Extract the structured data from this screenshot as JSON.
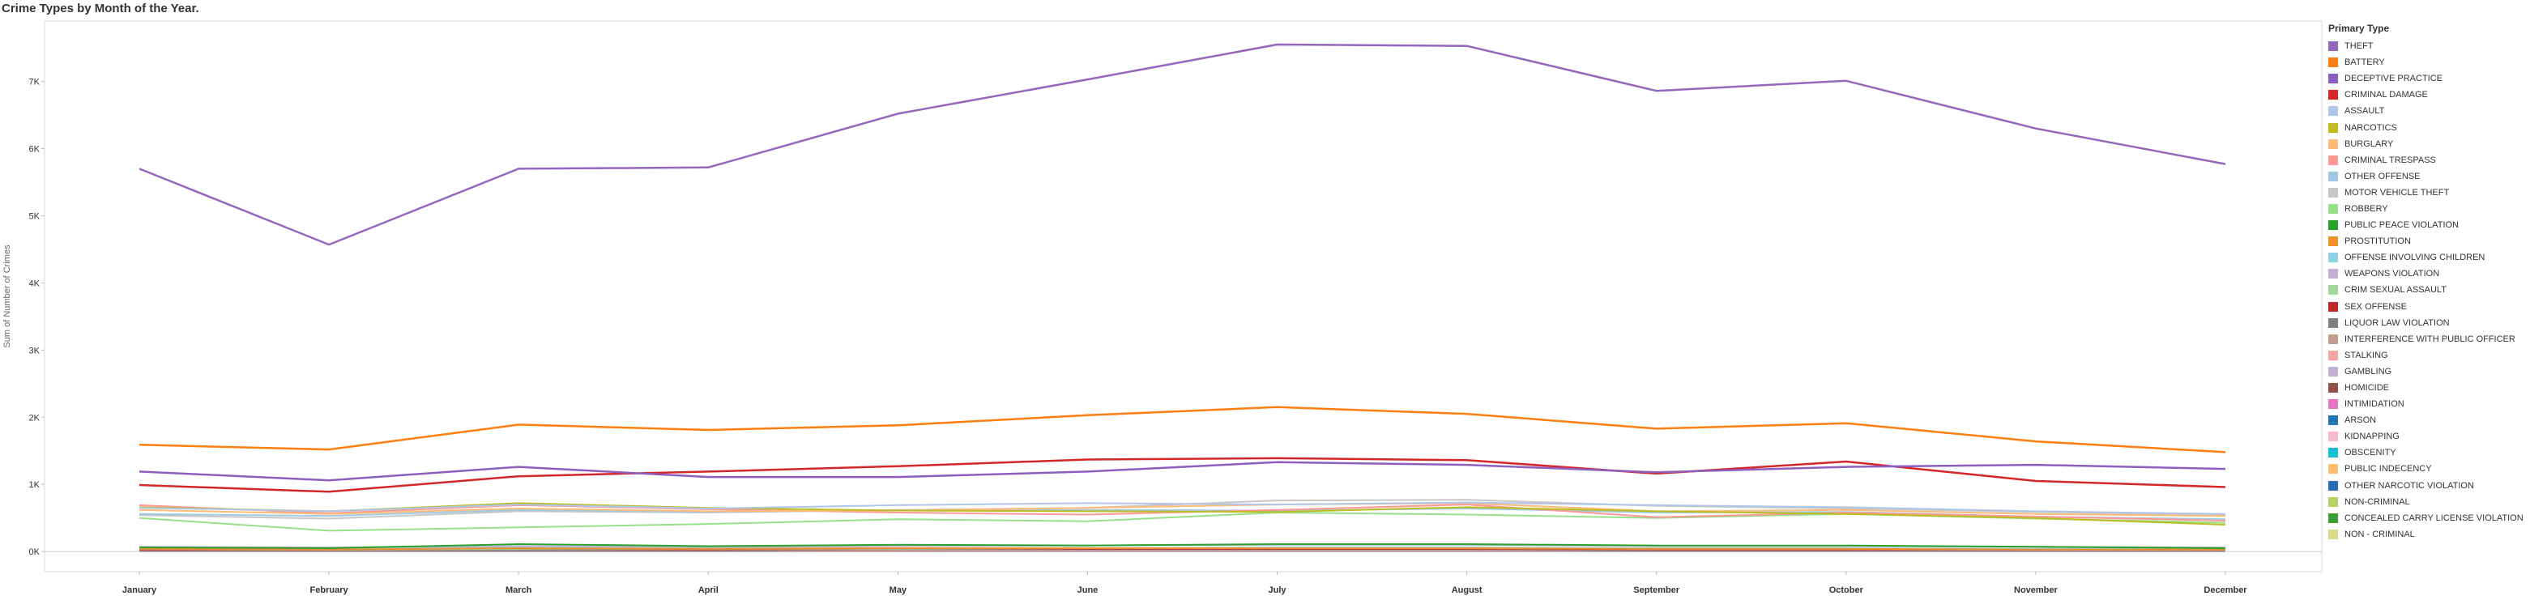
{
  "title": "Crime Types by Month of the Year.",
  "legend": {
    "title": "Primary Type",
    "placement": "right"
  },
  "chart_data": {
    "type": "line",
    "title": "Crime Types by Month of the Year.",
    "xlabel": "",
    "ylabel": "Sum of Number of Crimes",
    "ylim": [
      -300,
      7900
    ],
    "yticks": [
      0,
      1000,
      2000,
      3000,
      4000,
      5000,
      6000,
      7000
    ],
    "ytick_labels": [
      "0K",
      "1K",
      "2K",
      "3K",
      "4K",
      "5K",
      "6K",
      "7K"
    ],
    "grid": false,
    "categories": [
      "January",
      "February",
      "March",
      "April",
      "May",
      "June",
      "July",
      "August",
      "September",
      "October",
      "November",
      "December"
    ],
    "series": [
      {
        "name": "THEFT",
        "color": "#9467bd",
        "values": [
          5700,
          4570,
          5700,
          5720,
          6520,
          7030,
          7550,
          7530,
          6860,
          7010,
          6300,
          5770
        ]
      },
      {
        "name": "BATTERY",
        "color": "#ff7f0e",
        "values": [
          1590,
          1520,
          1890,
          1810,
          1880,
          2030,
          2150,
          2050,
          1830,
          1910,
          1640,
          1480
        ]
      },
      {
        "name": "DECEPTIVE PRACTICE",
        "color": "#8c5fbf",
        "values": [
          1190,
          1060,
          1260,
          1110,
          1110,
          1190,
          1330,
          1290,
          1180,
          1260,
          1290,
          1230
        ]
      },
      {
        "name": "CRIMINAL DAMAGE",
        "color": "#d62728",
        "values": [
          990,
          890,
          1120,
          1190,
          1270,
          1370,
          1390,
          1360,
          1160,
          1340,
          1050,
          960
        ]
      },
      {
        "name": "ASSAULT",
        "color": "#aec7e8",
        "values": [
          650,
          600,
          700,
          640,
          690,
          720,
          700,
          730,
          690,
          660,
          600,
          560
        ]
      },
      {
        "name": "NARCOTICS",
        "color": "#bcbd22",
        "values": [
          660,
          600,
          720,
          650,
          610,
          600,
          590,
          660,
          600,
          560,
          500,
          400
        ]
      },
      {
        "name": "BURGLARY",
        "color": "#ffbb78",
        "values": [
          620,
          560,
          640,
          600,
          610,
          650,
          700,
          720,
          600,
          620,
          560,
          530
        ]
      },
      {
        "name": "CRIMINAL TRESPASS",
        "color": "#ff9896",
        "values": [
          690,
          570,
          690,
          630,
          580,
          550,
          620,
          700,
          510,
          580,
          520,
          460
        ]
      },
      {
        "name": "OTHER OFFENSE",
        "color": "#9ecae1",
        "values": [
          560,
          530,
          620,
          590,
          610,
          620,
          610,
          640,
          580,
          590,
          520,
          480
        ]
      },
      {
        "name": "MOTOR VEHICLE THEFT",
        "color": "#c7c7c7",
        "values": [
          540,
          490,
          600,
          580,
          620,
          650,
          760,
          770,
          680,
          640,
          590,
          540
        ]
      },
      {
        "name": "ROBBERY",
        "color": "#98df8a",
        "values": [
          500,
          310,
          360,
          410,
          480,
          450,
          580,
          550,
          500,
          560,
          490,
          430
        ]
      },
      {
        "name": "PUBLIC PEACE VIOLATION",
        "color": "#2ca02c",
        "values": [
          60,
          50,
          110,
          80,
          100,
          90,
          110,
          110,
          90,
          90,
          70,
          50
        ]
      },
      {
        "name": "PROSTITUTION",
        "color": "#f28e2b",
        "values": [
          40,
          30,
          50,
          40,
          50,
          50,
          50,
          50,
          40,
          40,
          30,
          30
        ]
      },
      {
        "name": "OFFENSE INVOLVING CHILDREN",
        "color": "#8dd3e0",
        "values": [
          50,
          40,
          60,
          50,
          50,
          50,
          60,
          60,
          50,
          50,
          40,
          40
        ]
      },
      {
        "name": "WEAPONS VIOLATION",
        "color": "#c5b0d5",
        "values": [
          70,
          60,
          80,
          70,
          80,
          90,
          100,
          100,
          80,
          80,
          70,
          60
        ]
      },
      {
        "name": "CRIM SEXUAL ASSAULT",
        "color": "#a1d99b",
        "values": [
          40,
          30,
          40,
          40,
          40,
          50,
          50,
          50,
          40,
          40,
          30,
          30
        ]
      },
      {
        "name": "SEX OFFENSE",
        "color": "#c62828",
        "values": [
          30,
          30,
          40,
          30,
          40,
          40,
          40,
          40,
          30,
          30,
          30,
          30
        ]
      },
      {
        "name": "LIQUOR LAW VIOLATION",
        "color": "#7f7f7f",
        "values": [
          20,
          20,
          20,
          20,
          30,
          30,
          30,
          30,
          20,
          20,
          20,
          20
        ]
      },
      {
        "name": "INTERFERENCE WITH PUBLIC OFFICER",
        "color": "#c49c94",
        "values": [
          30,
          30,
          40,
          30,
          40,
          40,
          40,
          40,
          30,
          30,
          30,
          30
        ]
      },
      {
        "name": "STALKING",
        "color": "#f4a6a6",
        "values": [
          10,
          10,
          10,
          10,
          10,
          10,
          10,
          10,
          10,
          10,
          10,
          10
        ]
      },
      {
        "name": "GAMBLING",
        "color": "#c3aed6",
        "values": [
          10,
          10,
          10,
          10,
          10,
          20,
          20,
          20,
          10,
          10,
          10,
          10
        ]
      },
      {
        "name": "HOMICIDE",
        "color": "#8c564b",
        "values": [
          10,
          10,
          10,
          10,
          10,
          20,
          20,
          20,
          10,
          10,
          10,
          10
        ]
      },
      {
        "name": "INTIMIDATION",
        "color": "#e377c2",
        "values": [
          10,
          10,
          10,
          10,
          10,
          10,
          10,
          10,
          10,
          10,
          10,
          10
        ]
      },
      {
        "name": "ARSON",
        "color": "#1f77b4",
        "values": [
          10,
          10,
          10,
          10,
          10,
          10,
          10,
          10,
          10,
          10,
          10,
          10
        ]
      },
      {
        "name": "KIDNAPPING",
        "color": "#f7b6d2",
        "values": [
          10,
          10,
          10,
          10,
          10,
          10,
          10,
          10,
          10,
          10,
          10,
          10
        ]
      },
      {
        "name": "OBSCENITY",
        "color": "#17becf",
        "values": [
          5,
          5,
          5,
          5,
          5,
          5,
          5,
          5,
          5,
          5,
          5,
          5
        ]
      },
      {
        "name": "PUBLIC INDECENCY",
        "color": "#fdbf6f",
        "values": [
          5,
          5,
          5,
          5,
          5,
          5,
          5,
          5,
          5,
          5,
          5,
          5
        ]
      },
      {
        "name": "OTHER NARCOTIC VIOLATION",
        "color": "#2b6cb0",
        "values": [
          5,
          5,
          5,
          5,
          5,
          5,
          5,
          5,
          5,
          5,
          5,
          5
        ]
      },
      {
        "name": "NON-CRIMINAL",
        "color": "#b5cf6b",
        "values": [
          5,
          5,
          5,
          5,
          5,
          5,
          5,
          5,
          5,
          5,
          5,
          5
        ]
      },
      {
        "name": "CONCEALED CARRY LICENSE VIOLATION",
        "color": "#3a9d3a",
        "values": [
          5,
          5,
          5,
          5,
          5,
          5,
          5,
          5,
          5,
          5,
          5,
          5
        ]
      },
      {
        "name": "NON - CRIMINAL",
        "color": "#dbdb8d",
        "values": [
          5,
          5,
          5,
          5,
          5,
          5,
          5,
          5,
          5,
          5,
          5,
          5
        ]
      }
    ]
  }
}
